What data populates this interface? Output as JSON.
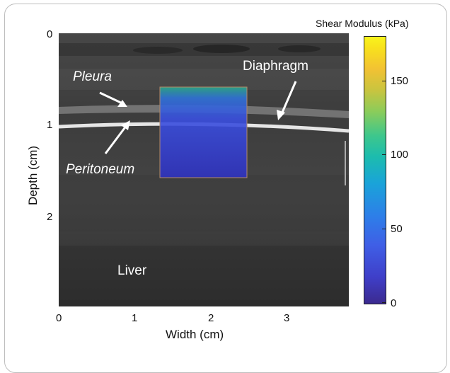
{
  "figure": {
    "y_axis": {
      "title": "Depth (cm)",
      "ticks": [
        "0",
        "1",
        "2"
      ]
    },
    "x_axis": {
      "title": "Width (cm)",
      "ticks": [
        "0",
        "1",
        "2",
        "3"
      ]
    },
    "annotations": {
      "pleura": "Pleura",
      "peritoneum": "Peritoneum",
      "diaphragm": "Diaphragm",
      "liver": "Liver"
    },
    "colorbar": {
      "title": "Shear Modulus (kPa)",
      "ticks": [
        "150",
        "100",
        "50",
        "0"
      ],
      "min": 0,
      "max": 180
    }
  },
  "colors": {
    "ultrasound_bg": "#3c3c3c",
    "diaphragm_line": "#e6e6e6",
    "elastography_roi": "#2f3fd0",
    "annotation_text": "#ffffff"
  }
}
